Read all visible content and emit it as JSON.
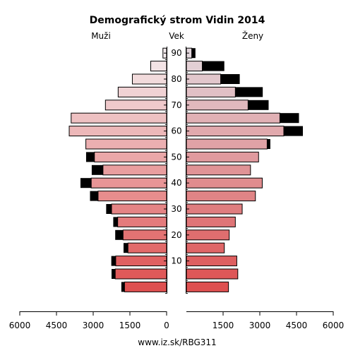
{
  "chart_data": {
    "type": "bar",
    "title": "Demografický strom Vidin 2014",
    "left_label": "Muži",
    "center_label": "Vek",
    "right_label": "Ženy",
    "footer": "www.iz.sk/RBG311",
    "xlim": [
      0,
      6000
    ],
    "x_ticks": [
      6000,
      4500,
      3000,
      1500,
      0,
      1500,
      3000,
      4500,
      6000
    ],
    "age_groups": [
      "0-4",
      "5-9",
      "10-14",
      "15-19",
      "20-24",
      "25-29",
      "30-34",
      "35-39",
      "40-44",
      "45-49",
      "50-54",
      "55-59",
      "60-64",
      "65-69",
      "70-74",
      "75-79",
      "80-84",
      "85-89",
      "90+"
    ],
    "age_ticks": [
      10,
      20,
      30,
      40,
      50,
      60,
      70,
      80,
      90
    ],
    "series": [
      {
        "name": "Muži",
        "base": [
          1720,
          2100,
          2080,
          1580,
          1780,
          2000,
          2250,
          2800,
          3080,
          2600,
          2950,
          3300,
          3980,
          3900,
          2500,
          1980,
          1400,
          650,
          150
        ],
        "excess": [
          130,
          150,
          180,
          180,
          320,
          180,
          220,
          330,
          440,
          460,
          340,
          0,
          0,
          0,
          0,
          0,
          0,
          0,
          0
        ]
      },
      {
        "name": "Ženy",
        "base": [
          1720,
          2100,
          2060,
          1550,
          1750,
          2000,
          2280,
          2820,
          3100,
          2620,
          2950,
          3300,
          3980,
          3820,
          2520,
          2000,
          1400,
          650,
          220
        ],
        "excess": [
          0,
          0,
          0,
          0,
          0,
          0,
          0,
          0,
          0,
          0,
          0,
          130,
          780,
          780,
          840,
          1120,
          780,
          900,
          150
        ]
      }
    ]
  }
}
